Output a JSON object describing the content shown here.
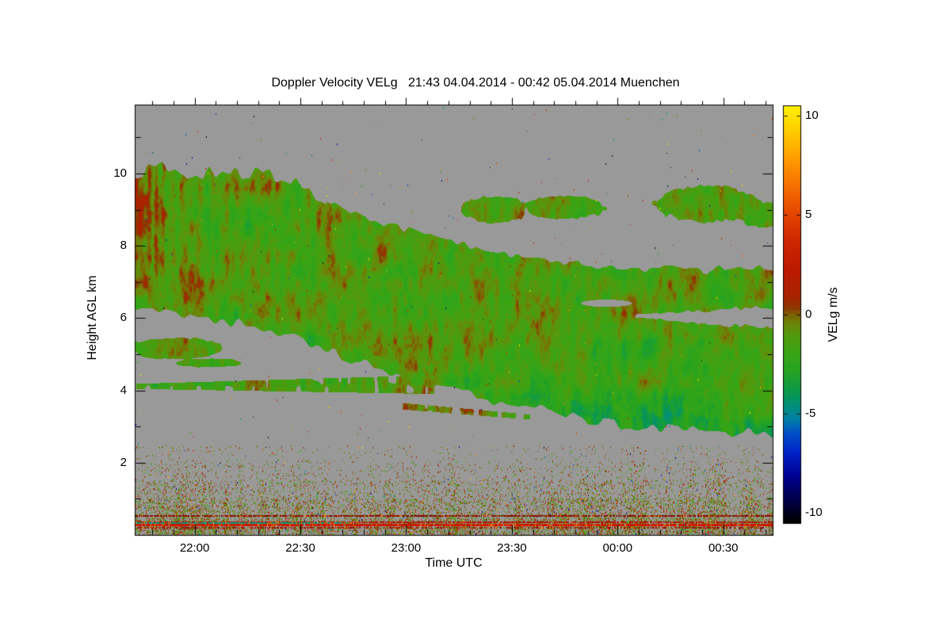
{
  "title": "Doppler Velocity VELg   21:43 04.04.2014 - 00:42 05.04.2014 Muenchen",
  "axes": {
    "xlabel": "Time UTC",
    "ylabel": "Height AGL km",
    "x_start_time": "21:43",
    "x_total_minutes": 181,
    "x_minor_step_minutes": 6,
    "x_ticks": [
      {
        "label": "22:00",
        "minute": 17
      },
      {
        "label": "22:30",
        "minute": 47
      },
      {
        "label": "23:00",
        "minute": 77
      },
      {
        "label": "23:30",
        "minute": 107
      },
      {
        "label": "00:00",
        "minute": 137
      },
      {
        "label": "00:30",
        "minute": 167
      }
    ],
    "y_ticks": [
      2,
      4,
      6,
      8,
      10
    ],
    "y_minor_step_km": 1
  },
  "colorbar": {
    "label": "VELg m/s",
    "ticks": [
      10,
      5,
      0,
      -5,
      -10
    ],
    "vmin": -10.5,
    "vmax": 10.5,
    "stops": [
      [
        -10.5,
        "#000000"
      ],
      [
        -9.4,
        "#000046"
      ],
      [
        -8.2,
        "#00008f"
      ],
      [
        -7.0,
        "#0022c8"
      ],
      [
        -6.0,
        "#0050c8"
      ],
      [
        -5.3,
        "#0080a8"
      ],
      [
        -4.6,
        "#009078"
      ],
      [
        -3.8,
        "#0f9a48"
      ],
      [
        -2.8,
        "#28a420"
      ],
      [
        -1.8,
        "#3ca414"
      ],
      [
        -1.0,
        "#55990e"
      ],
      [
        -0.45,
        "#6d8408"
      ],
      [
        -0.05,
        "#7c6404"
      ],
      [
        0.3,
        "#8c3a02"
      ],
      [
        0.9,
        "#a82400"
      ],
      [
        2.2,
        "#bc1a00"
      ],
      [
        3.6,
        "#cc2600"
      ],
      [
        5.0,
        "#e44400"
      ],
      [
        6.4,
        "#f66e00"
      ],
      [
        7.8,
        "#ff9c00"
      ],
      [
        9.2,
        "#ffcc00"
      ],
      [
        10.5,
        "#fff200"
      ]
    ]
  },
  "colors": {
    "background": "#ffffff",
    "frame": "#000000",
    "no_data": "#999999"
  },
  "chart_data": {
    "type": "heatmap",
    "title": "Doppler Velocity VELg   21:43 04.04.2014 - 00:42 05.04.2014 Muenchen",
    "xlabel": "Time UTC",
    "ylabel": "Height AGL km",
    "value_label": "VELg m/s",
    "x_range": [
      "21:43",
      "00:42"
    ],
    "y_range_km": [
      0,
      11.91
    ],
    "value_range_ms": [
      -10.5,
      10.5
    ],
    "no_data": "gray",
    "mean_cloud_velocity_ms": -1.3,
    "description": "Descending cloud layer, mostly -3 to +1 m/s (green to olive/red-brown), gray = no signal, speckle noise below 2.4 km, red ground-clutter lines near 0.3 and 0.5 km",
    "cloud_top": {
      "t": [
        0,
        0.04,
        0.08,
        0.12,
        0.16,
        0.2,
        0.24,
        0.27,
        0.3,
        0.34,
        0.38,
        0.42,
        0.46,
        0.5,
        0.55,
        0.6,
        0.65,
        0.7,
        0.75,
        0.8,
        0.85,
        0.9,
        0.95,
        1.0
      ],
      "h": [
        10.0,
        10.1,
        9.9,
        10.05,
        9.9,
        10.0,
        9.85,
        9.55,
        9.25,
        8.95,
        8.7,
        8.5,
        8.3,
        8.1,
        7.9,
        7.7,
        7.55,
        7.45,
        7.4,
        7.3,
        7.4,
        7.3,
        7.4,
        7.35
      ]
    },
    "cloud_bottom": {
      "t": [
        0,
        0.04,
        0.08,
        0.12,
        0.16,
        0.2,
        0.24,
        0.27,
        0.3,
        0.34,
        0.38,
        0.42,
        0.46,
        0.5,
        0.55,
        0.6,
        0.65,
        0.7,
        0.75,
        0.8,
        0.85,
        0.9,
        0.95,
        1.0
      ],
      "h": [
        6.3,
        6.25,
        6.1,
        6.0,
        5.85,
        5.7,
        5.5,
        5.35,
        5.15,
        4.85,
        4.6,
        4.35,
        4.1,
        3.95,
        3.75,
        3.6,
        3.4,
        3.2,
        3.05,
        2.95,
        2.9,
        2.85,
        2.8,
        2.8
      ]
    },
    "patches": [
      {
        "tc": 0.065,
        "hc": 5.15,
        "rt": 0.07,
        "rh": 0.3
      },
      {
        "tc": 0.115,
        "hc": 4.75,
        "rt": 0.05,
        "rh": 0.12
      },
      {
        "tc": 0.565,
        "hc": 9.0,
        "rt": 0.05,
        "rh": 0.36
      },
      {
        "tc": 0.675,
        "hc": 9.05,
        "rt": 0.062,
        "rh": 0.3
      },
      {
        "tc": 0.9,
        "hc": 9.15,
        "rt": 0.08,
        "rh": 0.48
      },
      {
        "tc": 0.985,
        "hc": 8.85,
        "rt": 0.04,
        "rh": 0.33
      }
    ],
    "layers": [
      {
        "t0": 0.0,
        "t1": 0.47,
        "h0": 4.1,
        "h1": 4.15,
        "half0": 0.07,
        "half1": 0.26,
        "gate": 0.25
      },
      {
        "t0": 0.42,
        "t1": 0.62,
        "h0": 3.55,
        "h1": 3.25,
        "half0": 0.09,
        "half1": 0.07,
        "gate": 0.35
      }
    ],
    "holes": [
      {
        "type": "band",
        "t0": 0.785,
        "t1": 1.0,
        "h0": 6.05,
        "h1": 6.0,
        "half0": 0.04,
        "half1": 0.3
      },
      {
        "type": "ellipse",
        "tc": 0.74,
        "hc": 6.4,
        "rt": 0.04,
        "rh": 0.1
      }
    ],
    "speckle": {
      "top_km": 2.45,
      "densities": [
        [
          0.45,
          0.3
        ],
        [
          1.0,
          0.2
        ],
        [
          1.5,
          0.11
        ],
        [
          2.0,
          0.05
        ],
        [
          2.45,
          0.022
        ]
      ],
      "dash_prob": 0.45,
      "v_center": -0.3,
      "v_spread": 1.5,
      "outlier_prob": 0.1
    },
    "scatter_dots": {
      "count": 420
    },
    "clutter_rows": [
      {
        "h": 0.54,
        "color": "#801000",
        "presence": 0.85,
        "thick": 2
      },
      {
        "h": 0.38,
        "color": "#a81400",
        "presence": 0.85,
        "thick": 2
      },
      {
        "h": 0.345,
        "color": "#00a089",
        "presence": 0.8,
        "thick": 2,
        "t0": 0.0,
        "t1": 0.34
      },
      {
        "h": 0.31,
        "color": "#cc1600",
        "presence": 0.95,
        "thick": 3
      },
      {
        "h": 0.23,
        "color": "#981200",
        "presence": 0.6,
        "thick": 2
      }
    ]
  }
}
